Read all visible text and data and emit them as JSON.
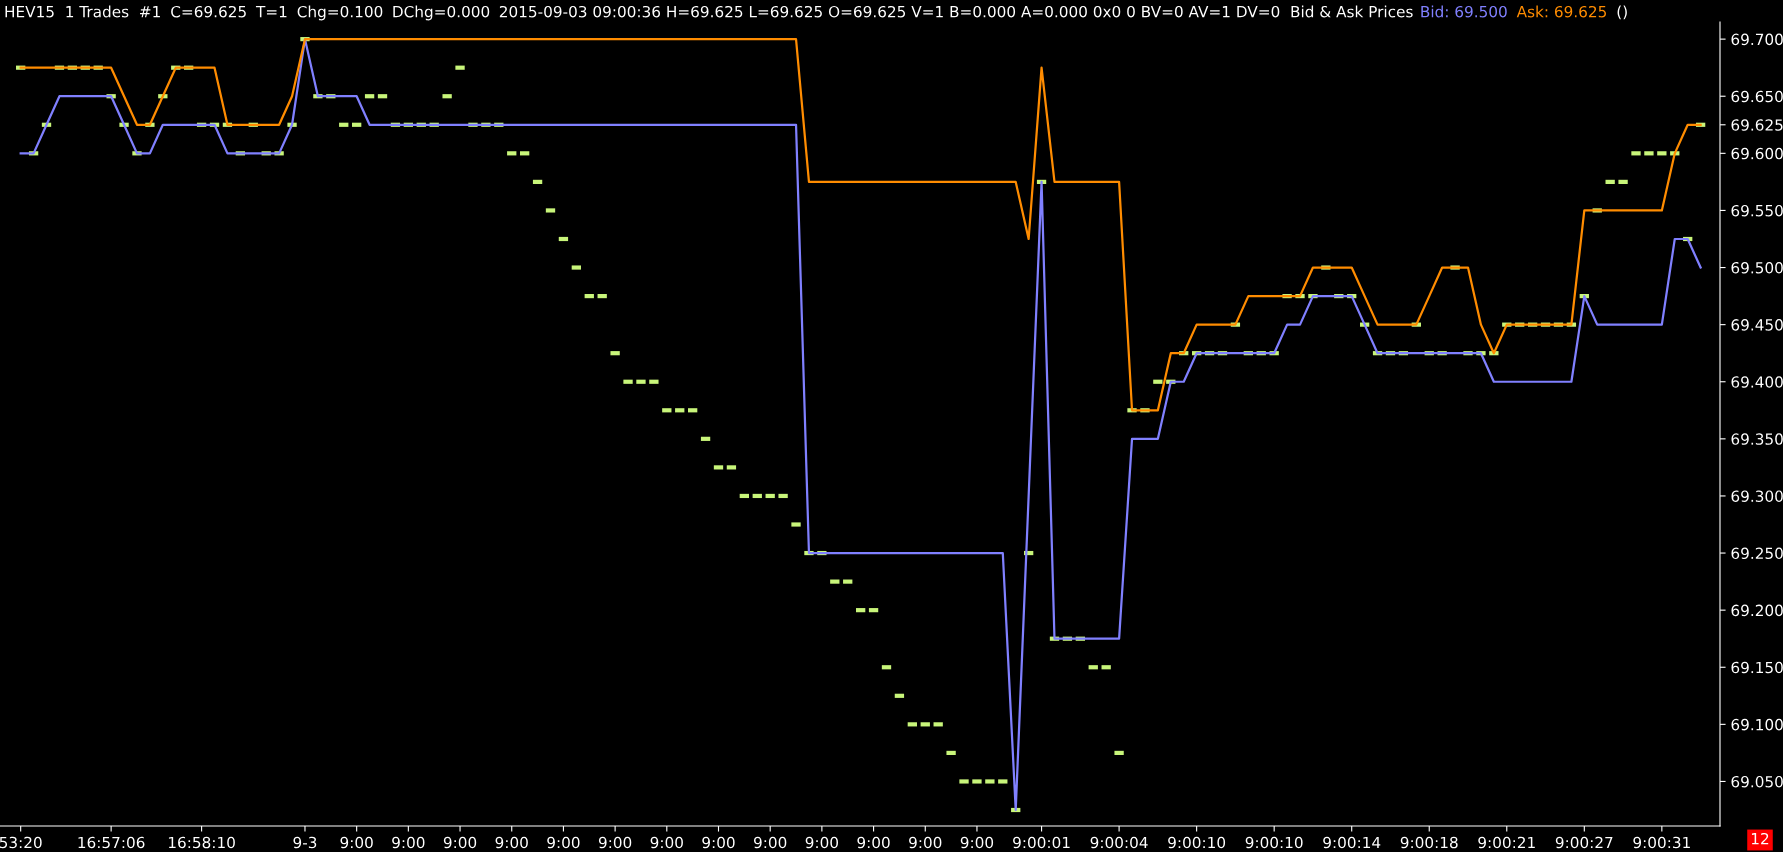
{
  "chart_data": {
    "type": "line",
    "title": "HEV15  1 Trades  #1",
    "annotations": [
      "C=69.625",
      "T=1",
      "Chg=0.100",
      "DChg=0.000",
      "2015-09-03 09:00:36 H=69.625 L=69.625 O=69.625 V=1 B=0.000 A=0.000 0x0 0 BV=0 AV=1 DV=0  Bid & Ask Prices",
      "()",
      "12"
    ],
    "categories": [
      "53:20",
      null,
      null,
      null,
      null,
      null,
      null,
      "16:57:06",
      null,
      null,
      null,
      null,
      null,
      null,
      "16:58:10",
      null,
      null,
      null,
      null,
      null,
      null,
      null,
      "9-3",
      null,
      null,
      null,
      "9:00",
      null,
      null,
      null,
      "9:00",
      null,
      null,
      null,
      "9:00",
      null,
      null,
      null,
      "9:00",
      null,
      null,
      null,
      "9:00",
      null,
      null,
      null,
      "9:00",
      null,
      null,
      null,
      "9:00",
      null,
      null,
      null,
      "9:00",
      null,
      null,
      null,
      "9:00",
      null,
      null,
      null,
      "9:00",
      null,
      null,
      null,
      "9:00",
      null,
      null,
      null,
      "9:00",
      null,
      null,
      null,
      "9:00",
      null,
      null,
      null,
      null,
      "9:00:01",
      null,
      null,
      null,
      null,
      null,
      "9:00:04",
      null,
      null,
      null,
      null,
      null,
      "9:00:10",
      null,
      null,
      null,
      null,
      null,
      "9:00:10",
      null,
      null,
      null,
      null,
      null,
      "9:00:14",
      null,
      null,
      null,
      null,
      null,
      "9:00:18",
      null,
      null,
      null,
      null,
      null,
      "9:00:21",
      null,
      null,
      null,
      null,
      null,
      "9:00:27",
      null,
      null,
      null,
      null,
      null,
      "9:00:31",
      null,
      null,
      null
    ],
    "series": [
      {
        "type": "scatter",
        "color": "#c8f57a",
        "values": [
          69.675,
          69.6,
          69.625,
          69.675,
          69.675,
          69.675,
          69.675,
          69.65,
          69.625,
          69.6,
          69.625,
          69.65,
          69.675,
          69.675,
          69.625,
          69.625,
          69.625,
          69.6,
          69.625,
          69.6,
          69.6,
          69.625,
          69.7,
          69.65,
          69.65,
          69.625,
          69.625,
          69.65,
          69.65,
          69.625,
          69.625,
          69.625,
          69.625,
          69.65,
          69.675,
          69.625,
          69.625,
          69.625,
          69.6,
          69.6,
          69.575,
          69.55,
          69.525,
          69.5,
          69.475,
          69.475,
          69.425,
          69.4,
          69.4,
          69.4,
          69.375,
          69.375,
          69.375,
          69.35,
          69.325,
          69.325,
          69.3,
          69.3,
          69.3,
          69.3,
          69.275,
          69.25,
          69.25,
          69.225,
          69.225,
          69.2,
          69.2,
          69.15,
          69.125,
          69.1,
          69.1,
          69.1,
          69.075,
          69.05,
          69.05,
          69.05,
          69.05,
          69.025,
          69.25,
          69.575,
          69.175,
          69.175,
          69.175,
          69.15,
          69.15,
          69.075,
          69.375,
          69.375,
          69.4,
          69.4,
          69.425,
          69.425,
          69.425,
          69.425,
          69.45,
          69.425,
          69.425,
          69.425,
          69.475,
          69.475,
          69.475,
          69.5,
          69.475,
          69.475,
          69.45,
          69.425,
          69.425,
          69.425,
          69.45,
          69.425,
          69.425,
          69.5,
          69.425,
          69.425,
          69.425,
          69.45,
          69.45,
          69.45,
          69.45,
          69.45,
          69.45,
          69.475,
          69.55,
          69.575,
          69.575,
          69.6,
          69.6,
          69.6,
          69.6,
          69.525,
          69.625
        ]
      },
      {
        "name": "Bid: 69.500",
        "color": "#8080ff",
        "values": [
          69.6,
          69.6,
          69.625,
          69.65,
          69.65,
          69.65,
          69.65,
          69.65,
          69.625,
          69.6,
          69.6,
          69.625,
          69.625,
          69.625,
          69.625,
          69.625,
          69.6,
          69.6,
          69.6,
          69.6,
          69.6,
          69.625,
          69.7,
          69.65,
          69.65,
          69.65,
          69.65,
          69.625,
          69.625,
          69.625,
          69.625,
          69.625,
          69.625,
          69.625,
          69.625,
          69.625,
          69.625,
          69.625,
          69.625,
          69.625,
          69.625,
          69.625,
          69.625,
          69.625,
          69.625,
          69.625,
          69.625,
          69.625,
          69.625,
          69.625,
          69.625,
          69.625,
          69.625,
          69.625,
          69.625,
          69.625,
          69.625,
          69.625,
          69.625,
          69.625,
          69.625,
          69.25,
          69.25,
          69.25,
          69.25,
          69.25,
          69.25,
          69.25,
          69.25,
          69.25,
          69.25,
          69.25,
          69.25,
          69.25,
          69.25,
          69.25,
          69.25,
          69.025,
          69.3,
          69.575,
          69.175,
          69.175,
          69.175,
          69.175,
          69.175,
          69.175,
          69.35,
          69.35,
          69.35,
          69.4,
          69.4,
          69.425,
          69.425,
          69.425,
          69.425,
          69.425,
          69.425,
          69.425,
          69.45,
          69.45,
          69.475,
          69.475,
          69.475,
          69.475,
          69.45,
          69.425,
          69.425,
          69.425,
          69.425,
          69.425,
          69.425,
          69.425,
          69.425,
          69.425,
          69.4,
          69.4,
          69.4,
          69.4,
          69.4,
          69.4,
          69.4,
          69.475,
          69.45,
          69.45,
          69.45,
          69.45,
          69.45,
          69.45,
          69.525,
          69.525,
          69.5
        ]
      },
      {
        "name": "Ask: 69.625",
        "color": "#ff8c00",
        "values": [
          69.675,
          69.675,
          69.675,
          69.675,
          69.675,
          69.675,
          69.675,
          69.675,
          69.65,
          69.625,
          69.625,
          69.65,
          69.675,
          69.675,
          69.675,
          69.675,
          69.625,
          69.625,
          69.625,
          69.625,
          69.625,
          69.65,
          69.7,
          69.7,
          69.7,
          69.7,
          69.7,
          69.7,
          69.7,
          69.7,
          69.7,
          69.7,
          69.7,
          69.7,
          69.7,
          69.7,
          69.7,
          69.7,
          69.7,
          69.7,
          69.7,
          69.7,
          69.7,
          69.7,
          69.7,
          69.7,
          69.7,
          69.7,
          69.7,
          69.7,
          69.7,
          69.7,
          69.7,
          69.7,
          69.7,
          69.7,
          69.7,
          69.7,
          69.7,
          69.7,
          69.7,
          69.575,
          69.575,
          69.575,
          69.575,
          69.575,
          69.575,
          69.575,
          69.575,
          69.575,
          69.575,
          69.575,
          69.575,
          69.575,
          69.575,
          69.575,
          69.575,
          69.575,
          69.525,
          69.675,
          69.575,
          69.575,
          69.575,
          69.575,
          69.575,
          69.575,
          69.375,
          69.375,
          69.375,
          69.425,
          69.425,
          69.45,
          69.45,
          69.45,
          69.45,
          69.475,
          69.475,
          69.475,
          69.475,
          69.475,
          69.5,
          69.5,
          69.5,
          69.5,
          69.475,
          69.45,
          69.45,
          69.45,
          69.45,
          69.475,
          69.5,
          69.5,
          69.5,
          69.45,
          69.425,
          69.45,
          69.45,
          69.45,
          69.45,
          69.45,
          69.45,
          69.55,
          69.55,
          69.55,
          69.55,
          69.55,
          69.55,
          69.55,
          69.6,
          69.625,
          69.625
        ]
      }
    ],
    "ylim": [
      69.011,
      69.715
    ],
    "yticks": [
      {
        "value": 69.05,
        "label": "69.050"
      },
      {
        "value": 69.1,
        "label": "69.100"
      },
      {
        "value": 69.15,
        "label": "69.150"
      },
      {
        "value": 69.2,
        "label": "69.200"
      },
      {
        "value": 69.25,
        "label": "69.250"
      },
      {
        "value": 69.3,
        "label": "69.300"
      },
      {
        "value": 69.35,
        "label": "69.350"
      },
      {
        "value": 69.4,
        "label": "69.400"
      },
      {
        "value": 69.45,
        "label": "69.450"
      },
      {
        "value": 69.5,
        "label": "69.500"
      },
      {
        "value": 69.55,
        "label": "69.550"
      },
      {
        "value": 69.6,
        "label": "69.600"
      },
      {
        "value": 69.625,
        "label": "69.625"
      },
      {
        "value": 69.65,
        "label": "69.650"
      },
      {
        "value": 69.7,
        "label": "69.700"
      }
    ]
  }
}
